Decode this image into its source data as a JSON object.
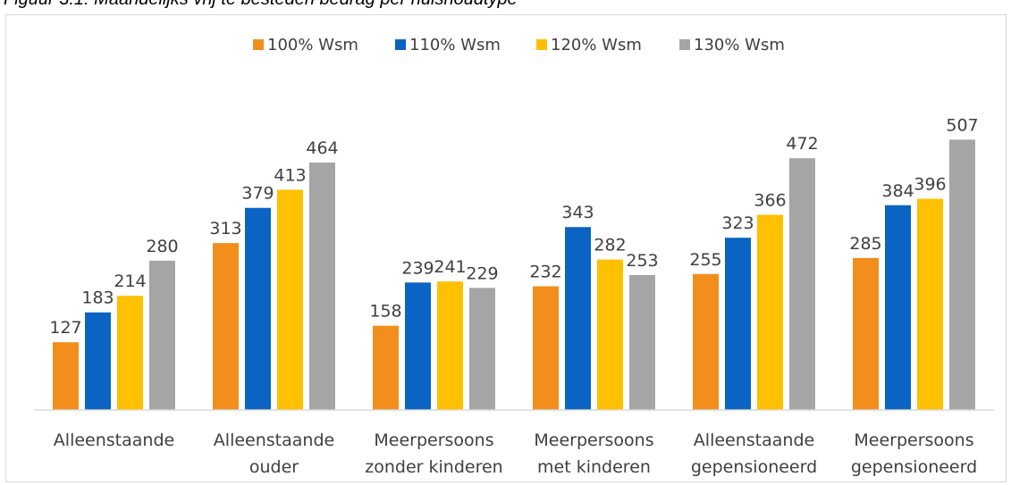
{
  "caption": "Figuur 3.1: Maandelijks vrij te besteden bedrag per huishoudtype",
  "chart_data": {
    "type": "bar",
    "categories": [
      [
        "Alleenstaande"
      ],
      [
        "Alleenstaande",
        "ouder"
      ],
      [
        "Meerpersoons",
        "zonder kinderen"
      ],
      [
        "Meerpersoons",
        "met kinderen"
      ],
      [
        "Alleenstaande",
        "gepensioneerd"
      ],
      [
        "Meerpersoons",
        "gepensioneerd"
      ]
    ],
    "series": [
      {
        "name": "100% Wsm",
        "color": "#f28e1c",
        "values": [
          127,
          313,
          158,
          232,
          255,
          285
        ]
      },
      {
        "name": "110% Wsm",
        "color": "#0b63c4",
        "values": [
          183,
          379,
          239,
          343,
          323,
          384
        ]
      },
      {
        "name": "120% Wsm",
        "color": "#ffc000",
        "values": [
          214,
          413,
          241,
          282,
          366,
          396
        ]
      },
      {
        "name": "130% Wsm",
        "color": "#a5a5a5",
        "values": [
          280,
          464,
          229,
          253,
          472,
          507
        ]
      }
    ],
    "ylim": [
      0,
      530
    ],
    "legend_position": "top",
    "grid": false,
    "data_labels": true
  }
}
